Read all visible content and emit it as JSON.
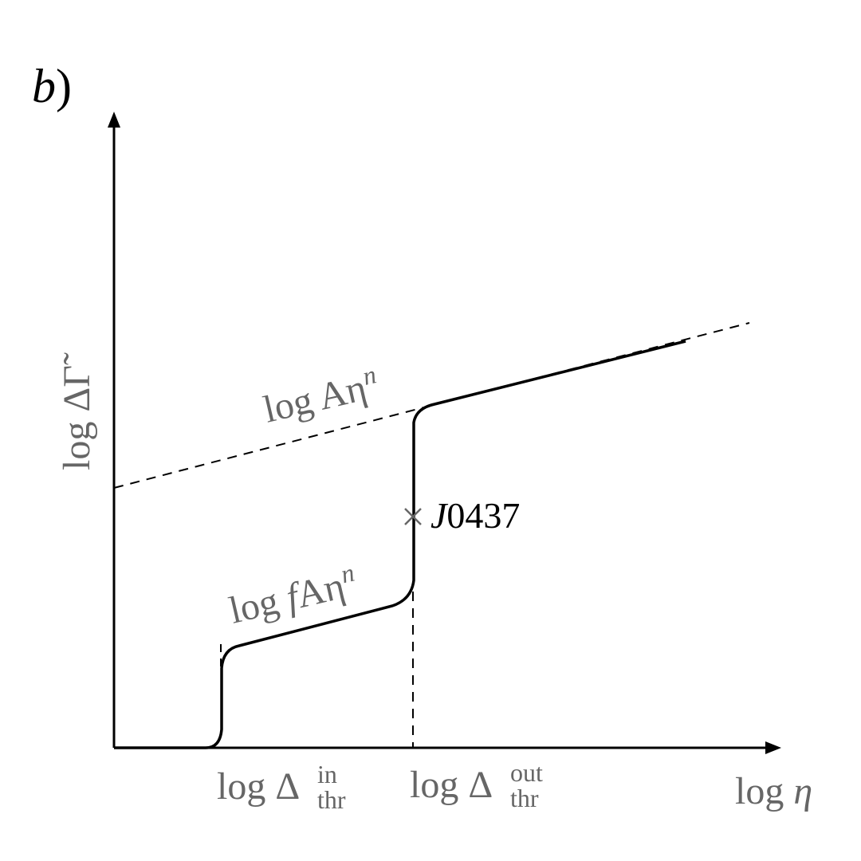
{
  "panel_label": {
    "letter": "b",
    "paren": ")"
  },
  "axes": {
    "y_label": "log ΔΓ̃",
    "x_label": {
      "prefix": "log ",
      "var": "η"
    }
  },
  "curves": {
    "upper_label": {
      "prefix": "log Aη",
      "sup": "n"
    },
    "lower_label": {
      "prefix": "log ",
      "f": "f",
      "rest": "Aη",
      "sup": "n"
    }
  },
  "point": {
    "label": {
      "letter": "J",
      "number": "0437"
    }
  },
  "thresholds": [
    {
      "base": "log Δ",
      "sup": "in",
      "sub": "thr"
    },
    {
      "base": "log Δ",
      "sup": "out",
      "sub": "thr"
    }
  ]
}
